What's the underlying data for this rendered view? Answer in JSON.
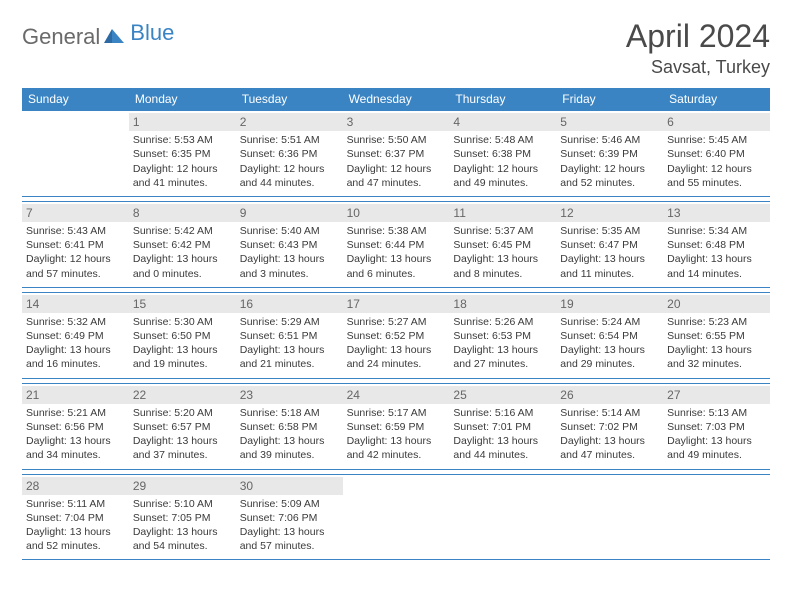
{
  "logo": {
    "part1": "General",
    "part2": "Blue"
  },
  "title": "April 2024",
  "location": "Savsat, Turkey",
  "colors": {
    "header_bg": "#3a84c4",
    "header_text": "#ffffff",
    "border": "#3a84c4",
    "daynum_bg": "#e8e8e8",
    "daynum_text": "#666666",
    "body_text": "#3a3a3a",
    "title_text": "#4a4a4a",
    "logo_gray": "#6a6a6a",
    "logo_blue": "#3a84c4"
  },
  "day_names": [
    "Sunday",
    "Monday",
    "Tuesday",
    "Wednesday",
    "Thursday",
    "Friday",
    "Saturday"
  ],
  "weeks": [
    [
      {
        "day": "",
        "sunrise": "",
        "sunset": "",
        "daylight1": "",
        "daylight2": ""
      },
      {
        "day": "1",
        "sunrise": "Sunrise: 5:53 AM",
        "sunset": "Sunset: 6:35 PM",
        "daylight1": "Daylight: 12 hours",
        "daylight2": "and 41 minutes."
      },
      {
        "day": "2",
        "sunrise": "Sunrise: 5:51 AM",
        "sunset": "Sunset: 6:36 PM",
        "daylight1": "Daylight: 12 hours",
        "daylight2": "and 44 minutes."
      },
      {
        "day": "3",
        "sunrise": "Sunrise: 5:50 AM",
        "sunset": "Sunset: 6:37 PM",
        "daylight1": "Daylight: 12 hours",
        "daylight2": "and 47 minutes."
      },
      {
        "day": "4",
        "sunrise": "Sunrise: 5:48 AM",
        "sunset": "Sunset: 6:38 PM",
        "daylight1": "Daylight: 12 hours",
        "daylight2": "and 49 minutes."
      },
      {
        "day": "5",
        "sunrise": "Sunrise: 5:46 AM",
        "sunset": "Sunset: 6:39 PM",
        "daylight1": "Daylight: 12 hours",
        "daylight2": "and 52 minutes."
      },
      {
        "day": "6",
        "sunrise": "Sunrise: 5:45 AM",
        "sunset": "Sunset: 6:40 PM",
        "daylight1": "Daylight: 12 hours",
        "daylight2": "and 55 minutes."
      }
    ],
    [
      {
        "day": "7",
        "sunrise": "Sunrise: 5:43 AM",
        "sunset": "Sunset: 6:41 PM",
        "daylight1": "Daylight: 12 hours",
        "daylight2": "and 57 minutes."
      },
      {
        "day": "8",
        "sunrise": "Sunrise: 5:42 AM",
        "sunset": "Sunset: 6:42 PM",
        "daylight1": "Daylight: 13 hours",
        "daylight2": "and 0 minutes."
      },
      {
        "day": "9",
        "sunrise": "Sunrise: 5:40 AM",
        "sunset": "Sunset: 6:43 PM",
        "daylight1": "Daylight: 13 hours",
        "daylight2": "and 3 minutes."
      },
      {
        "day": "10",
        "sunrise": "Sunrise: 5:38 AM",
        "sunset": "Sunset: 6:44 PM",
        "daylight1": "Daylight: 13 hours",
        "daylight2": "and 6 minutes."
      },
      {
        "day": "11",
        "sunrise": "Sunrise: 5:37 AM",
        "sunset": "Sunset: 6:45 PM",
        "daylight1": "Daylight: 13 hours",
        "daylight2": "and 8 minutes."
      },
      {
        "day": "12",
        "sunrise": "Sunrise: 5:35 AM",
        "sunset": "Sunset: 6:47 PM",
        "daylight1": "Daylight: 13 hours",
        "daylight2": "and 11 minutes."
      },
      {
        "day": "13",
        "sunrise": "Sunrise: 5:34 AM",
        "sunset": "Sunset: 6:48 PM",
        "daylight1": "Daylight: 13 hours",
        "daylight2": "and 14 minutes."
      }
    ],
    [
      {
        "day": "14",
        "sunrise": "Sunrise: 5:32 AM",
        "sunset": "Sunset: 6:49 PM",
        "daylight1": "Daylight: 13 hours",
        "daylight2": "and 16 minutes."
      },
      {
        "day": "15",
        "sunrise": "Sunrise: 5:30 AM",
        "sunset": "Sunset: 6:50 PM",
        "daylight1": "Daylight: 13 hours",
        "daylight2": "and 19 minutes."
      },
      {
        "day": "16",
        "sunrise": "Sunrise: 5:29 AM",
        "sunset": "Sunset: 6:51 PM",
        "daylight1": "Daylight: 13 hours",
        "daylight2": "and 21 minutes."
      },
      {
        "day": "17",
        "sunrise": "Sunrise: 5:27 AM",
        "sunset": "Sunset: 6:52 PM",
        "daylight1": "Daylight: 13 hours",
        "daylight2": "and 24 minutes."
      },
      {
        "day": "18",
        "sunrise": "Sunrise: 5:26 AM",
        "sunset": "Sunset: 6:53 PM",
        "daylight1": "Daylight: 13 hours",
        "daylight2": "and 27 minutes."
      },
      {
        "day": "19",
        "sunrise": "Sunrise: 5:24 AM",
        "sunset": "Sunset: 6:54 PM",
        "daylight1": "Daylight: 13 hours",
        "daylight2": "and 29 minutes."
      },
      {
        "day": "20",
        "sunrise": "Sunrise: 5:23 AM",
        "sunset": "Sunset: 6:55 PM",
        "daylight1": "Daylight: 13 hours",
        "daylight2": "and 32 minutes."
      }
    ],
    [
      {
        "day": "21",
        "sunrise": "Sunrise: 5:21 AM",
        "sunset": "Sunset: 6:56 PM",
        "daylight1": "Daylight: 13 hours",
        "daylight2": "and 34 minutes."
      },
      {
        "day": "22",
        "sunrise": "Sunrise: 5:20 AM",
        "sunset": "Sunset: 6:57 PM",
        "daylight1": "Daylight: 13 hours",
        "daylight2": "and 37 minutes."
      },
      {
        "day": "23",
        "sunrise": "Sunrise: 5:18 AM",
        "sunset": "Sunset: 6:58 PM",
        "daylight1": "Daylight: 13 hours",
        "daylight2": "and 39 minutes."
      },
      {
        "day": "24",
        "sunrise": "Sunrise: 5:17 AM",
        "sunset": "Sunset: 6:59 PM",
        "daylight1": "Daylight: 13 hours",
        "daylight2": "and 42 minutes."
      },
      {
        "day": "25",
        "sunrise": "Sunrise: 5:16 AM",
        "sunset": "Sunset: 7:01 PM",
        "daylight1": "Daylight: 13 hours",
        "daylight2": "and 44 minutes."
      },
      {
        "day": "26",
        "sunrise": "Sunrise: 5:14 AM",
        "sunset": "Sunset: 7:02 PM",
        "daylight1": "Daylight: 13 hours",
        "daylight2": "and 47 minutes."
      },
      {
        "day": "27",
        "sunrise": "Sunrise: 5:13 AM",
        "sunset": "Sunset: 7:03 PM",
        "daylight1": "Daylight: 13 hours",
        "daylight2": "and 49 minutes."
      }
    ],
    [
      {
        "day": "28",
        "sunrise": "Sunrise: 5:11 AM",
        "sunset": "Sunset: 7:04 PM",
        "daylight1": "Daylight: 13 hours",
        "daylight2": "and 52 minutes."
      },
      {
        "day": "29",
        "sunrise": "Sunrise: 5:10 AM",
        "sunset": "Sunset: 7:05 PM",
        "daylight1": "Daylight: 13 hours",
        "daylight2": "and 54 minutes."
      },
      {
        "day": "30",
        "sunrise": "Sunrise: 5:09 AM",
        "sunset": "Sunset: 7:06 PM",
        "daylight1": "Daylight: 13 hours",
        "daylight2": "and 57 minutes."
      },
      {
        "day": "",
        "sunrise": "",
        "sunset": "",
        "daylight1": "",
        "daylight2": ""
      },
      {
        "day": "",
        "sunrise": "",
        "sunset": "",
        "daylight1": "",
        "daylight2": ""
      },
      {
        "day": "",
        "sunrise": "",
        "sunset": "",
        "daylight1": "",
        "daylight2": ""
      },
      {
        "day": "",
        "sunrise": "",
        "sunset": "",
        "daylight1": "",
        "daylight2": ""
      }
    ]
  ]
}
